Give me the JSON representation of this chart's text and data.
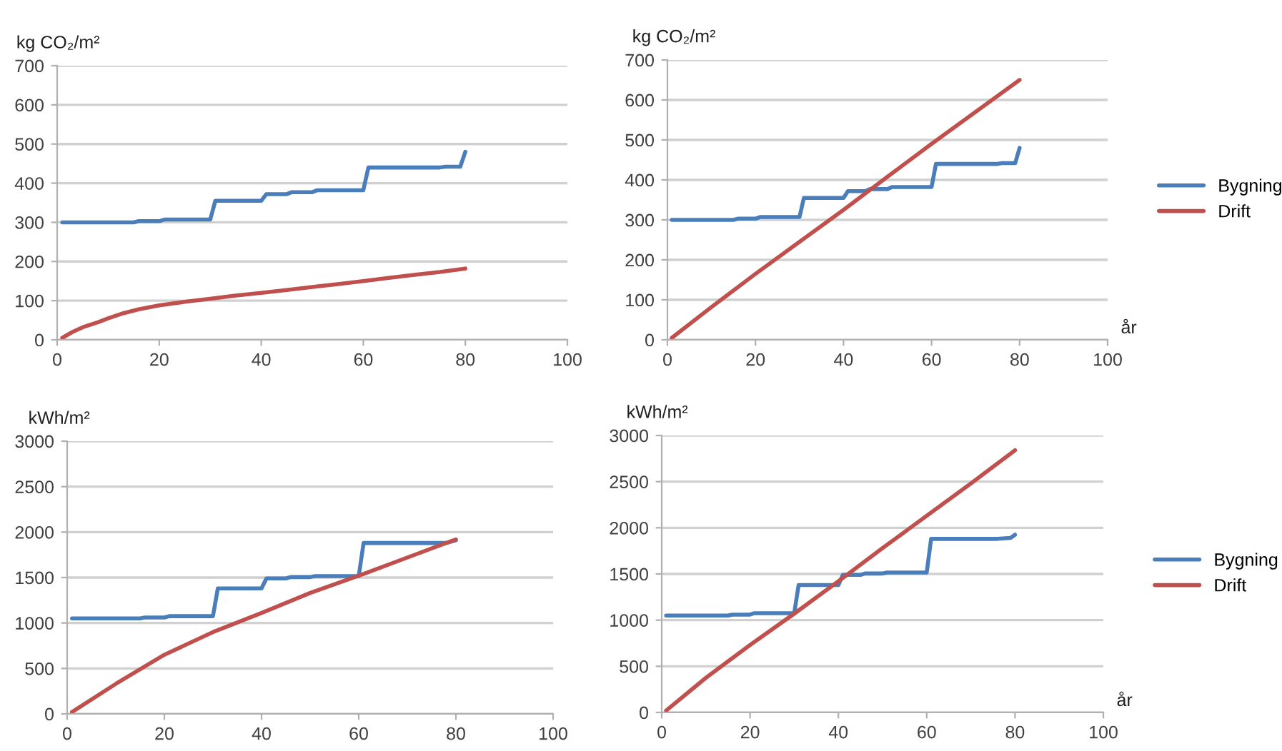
{
  "chart_data": [
    {
      "type": "line",
      "ylabel": "kg CO₂/m²",
      "xlim": [
        0,
        100
      ],
      "xticks": [
        0,
        20,
        40,
        60,
        80,
        100
      ],
      "ylim": [
        0,
        700
      ],
      "yticks": [
        0,
        100,
        200,
        300,
        400,
        500,
        600,
        700
      ],
      "grid": "y",
      "legend": false,
      "series": [
        {
          "color": "#4a7ebb",
          "x": [
            1,
            15,
            16,
            20,
            21,
            30,
            31,
            40,
            41,
            45,
            46,
            50,
            51,
            60,
            61,
            75,
            76,
            79,
            80
          ],
          "values": [
            300,
            300,
            303,
            303,
            307,
            307,
            355,
            355,
            372,
            372,
            377,
            377,
            382,
            382,
            440,
            440,
            442,
            442,
            480
          ]
        },
        {
          "color": "#c0504d",
          "x": [
            1,
            3,
            5,
            8,
            10,
            13,
            16,
            20,
            25,
            30,
            35,
            40,
            45,
            50,
            55,
            60,
            65,
            70,
            75,
            80
          ],
          "values": [
            5,
            20,
            32,
            45,
            55,
            68,
            78,
            88,
            97,
            105,
            113,
            120,
            127,
            135,
            142,
            150,
            158,
            166,
            173,
            182
          ]
        }
      ]
    },
    {
      "type": "line",
      "ylabel": "kg CO₂/m²",
      "xlabel": "år",
      "xlim": [
        0,
        100
      ],
      "xticks": [
        0,
        20,
        40,
        60,
        80,
        100
      ],
      "ylim": [
        0,
        700
      ],
      "yticks": [
        0,
        100,
        200,
        300,
        400,
        500,
        600,
        700
      ],
      "grid": "y",
      "legend": "right",
      "series": [
        {
          "name": "Bygning",
          "color": "#4a7ebb",
          "x": [
            1,
            15,
            16,
            20,
            21,
            30,
            31,
            40,
            41,
            45,
            46,
            50,
            51,
            60,
            61,
            75,
            76,
            79,
            80
          ],
          "values": [
            300,
            300,
            303,
            303,
            307,
            307,
            355,
            355,
            372,
            372,
            377,
            377,
            382,
            382,
            440,
            440,
            442,
            442,
            480
          ]
        },
        {
          "name": "Drift",
          "color": "#c0504d",
          "x": [
            1,
            10,
            20,
            30,
            40,
            50,
            60,
            70,
            80
          ],
          "values": [
            5,
            82,
            165,
            245,
            325,
            408,
            490,
            570,
            650
          ]
        }
      ]
    },
    {
      "type": "line",
      "ylabel": "kWh/m²",
      "xlim": [
        0,
        100
      ],
      "xticks": [
        0,
        20,
        40,
        60,
        80,
        100
      ],
      "ylim": [
        0,
        3000
      ],
      "yticks": [
        0,
        500,
        1000,
        1500,
        2000,
        2500,
        3000
      ],
      "grid": "y",
      "legend": false,
      "series": [
        {
          "color": "#4a7ebb",
          "x": [
            1,
            15,
            16,
            20,
            21,
            30,
            31,
            40,
            41,
            45,
            46,
            50,
            51,
            60,
            61,
            78,
            80
          ],
          "values": [
            1050,
            1050,
            1060,
            1060,
            1075,
            1075,
            1380,
            1380,
            1490,
            1490,
            1505,
            1505,
            1515,
            1515,
            1880,
            1880,
            1910
          ]
        },
        {
          "color": "#c0504d",
          "x": [
            1,
            10,
            20,
            30,
            40,
            50,
            60,
            70,
            80
          ],
          "values": [
            20,
            330,
            650,
            900,
            1110,
            1330,
            1520,
            1720,
            1920
          ]
        }
      ]
    },
    {
      "type": "line",
      "ylabel": "kWh/m²",
      "xlabel": "år",
      "xlim": [
        0,
        100
      ],
      "xticks": [
        0,
        20,
        40,
        60,
        80,
        100
      ],
      "ylim": [
        0,
        3000
      ],
      "yticks": [
        0,
        500,
        1000,
        1500,
        2000,
        2500,
        3000
      ],
      "grid": "y",
      "legend": "right",
      "series": [
        {
          "name": "Bygning",
          "color": "#4a7ebb",
          "x": [
            1,
            15,
            16,
            20,
            21,
            30,
            31,
            40,
            41,
            45,
            46,
            50,
            51,
            60,
            61,
            76,
            79,
            80
          ],
          "values": [
            1050,
            1050,
            1060,
            1060,
            1075,
            1075,
            1380,
            1380,
            1490,
            1490,
            1505,
            1505,
            1515,
            1515,
            1880,
            1880,
            1890,
            1925
          ]
        },
        {
          "name": "Drift",
          "color": "#c0504d",
          "x": [
            1,
            10,
            20,
            30,
            40,
            50,
            60,
            70,
            80
          ],
          "values": [
            20,
            375,
            730,
            1070,
            1420,
            1780,
            2130,
            2480,
            2840
          ]
        }
      ]
    }
  ]
}
